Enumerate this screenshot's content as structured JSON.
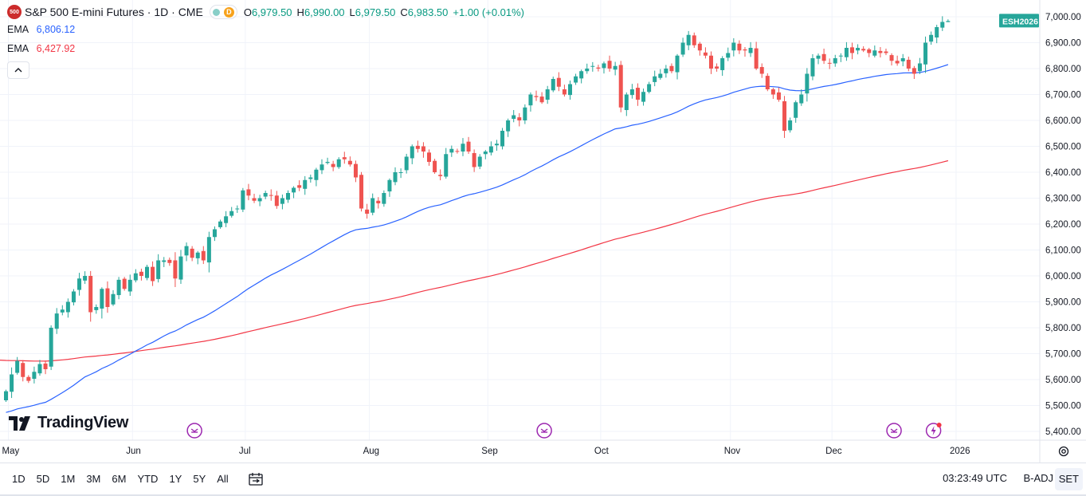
{
  "header": {
    "symbol_logo": "500",
    "title": "S&P 500 E-mini Futures · 1D · CME",
    "status_badge": "D",
    "ohlc": {
      "o_label": "O",
      "o_value": "6,979.50",
      "h_label": "H",
      "h_value": "6,990.00",
      "l_label": "L",
      "l_value": "6,979.50",
      "c_label": "C",
      "c_value": "6,983.50",
      "change": "+1.00 (+0.01%)"
    }
  },
  "indicators": [
    {
      "name": "EMA",
      "value": "6,806.12",
      "color": "#2962ff"
    },
    {
      "name": "EMA",
      "value": "6,427.92",
      "color": "#f23645"
    }
  ],
  "collapse_icon": "chevron-up-icon",
  "branding": "TradingView",
  "bottom_bar": {
    "ranges": [
      "1D",
      "5D",
      "1M",
      "3M",
      "6M",
      "YTD",
      "1Y",
      "5Y",
      "All"
    ],
    "compare_icon": "calendar-range-icon",
    "clock": "03:23:49 UTC",
    "adjust": "B-ADJ",
    "session": "SET"
  },
  "chart_data": {
    "type": "candlestick",
    "symbol_label": "ESH2026",
    "last_price": 6983.5,
    "ylim": [
      5400,
      7000
    ],
    "yticks": [
      "7,000.00",
      "6,900.00",
      "6,800.00",
      "6,700.00",
      "6,600.00",
      "6,500.00",
      "6,400.00",
      "6,300.00",
      "6,200.00",
      "6,100.00",
      "6,000.00",
      "5,900.00",
      "5,800.00",
      "5,700.00",
      "5,600.00",
      "5,500.00",
      "5,400.00"
    ],
    "ytick_values": [
      7000,
      6900,
      6800,
      6700,
      6600,
      6500,
      6400,
      6300,
      6200,
      6100,
      6000,
      5900,
      5800,
      5700,
      5600,
      5500,
      5400
    ],
    "month_ticks": [
      {
        "label": "May",
        "index": 0
      },
      {
        "label": "Jun",
        "index": 22
      },
      {
        "label": "Jul",
        "index": 42
      },
      {
        "label": "Aug",
        "index": 64
      },
      {
        "label": "Sep",
        "index": 85
      },
      {
        "label": "Oct",
        "index": 105
      },
      {
        "label": "Nov",
        "index": 128
      },
      {
        "label": "Dec",
        "index": 146
      },
      {
        "label": "2026",
        "index": 168
      }
    ],
    "event_markers": [
      {
        "index": 33,
        "icon": "dividend-arrow-icon"
      },
      {
        "index": 95,
        "icon": "dividend-arrow-icon"
      },
      {
        "index": 157,
        "icon": "dividend-arrow-icon"
      },
      {
        "index": 164,
        "icon": "lightning-icon"
      }
    ],
    "colors": {
      "up": "#26a69a",
      "down": "#ef5350",
      "ema_fast": "#2962ff",
      "ema_slow": "#f23645",
      "grid": "#f0f3fa",
      "label": "#26a69a"
    },
    "grid": true,
    "closes": [
      5555,
      5620,
      5672,
      5610,
      5595,
      5630,
      5660,
      5640,
      5800,
      5855,
      5870,
      5900,
      5940,
      5990,
      6000,
      5860,
      5880,
      5950,
      5880,
      5930,
      5985,
      5950,
      5985,
      6010,
      6000,
      6035,
      5980,
      6060,
      6060,
      6050,
      5990,
      6075,
      6115,
      6070,
      6090,
      6060,
      6150,
      6180,
      6210,
      6230,
      6250,
      6260,
      6330,
      6310,
      6290,
      6300,
      6320,
      6310,
      6270,
      6300,
      6320,
      6340,
      6340,
      6370,
      6380,
      6410,
      6430,
      6440,
      6420,
      6450,
      6450,
      6430,
      6380,
      6260,
      6240,
      6300,
      6280,
      6320,
      6370,
      6400,
      6400,
      6460,
      6500,
      6490,
      6480,
      6440,
      6400,
      6385,
      6470,
      6490,
      6480,
      6510,
      6480,
      6420,
      6460,
      6480,
      6500,
      6510,
      6560,
      6600,
      6620,
      6600,
      6650,
      6700,
      6690,
      6670,
      6720,
      6760,
      6730,
      6700,
      6740,
      6770,
      6790,
      6800,
      6810,
      6800,
      6820,
      6800,
      6810,
      6650,
      6700,
      6720,
      6680,
      6710,
      6740,
      6770,
      6780,
      6800,
      6790,
      6850,
      6900,
      6930,
      6890,
      6870,
      6850,
      6800,
      6800,
      6840,
      6860,
      6900,
      6870,
      6870,
      6880,
      6800,
      6780,
      6720,
      6700,
      6680,
      6560,
      6600,
      6670,
      6700,
      6780,
      6840,
      6850,
      6830,
      6820,
      6840,
      6850,
      6880,
      6860,
      6880,
      6870,
      6860,
      6870,
      6860,
      6860,
      6830,
      6820,
      6840,
      6800,
      6780,
      6820,
      6900,
      6930,
      6960,
      6980,
      6983.5
    ]
  }
}
